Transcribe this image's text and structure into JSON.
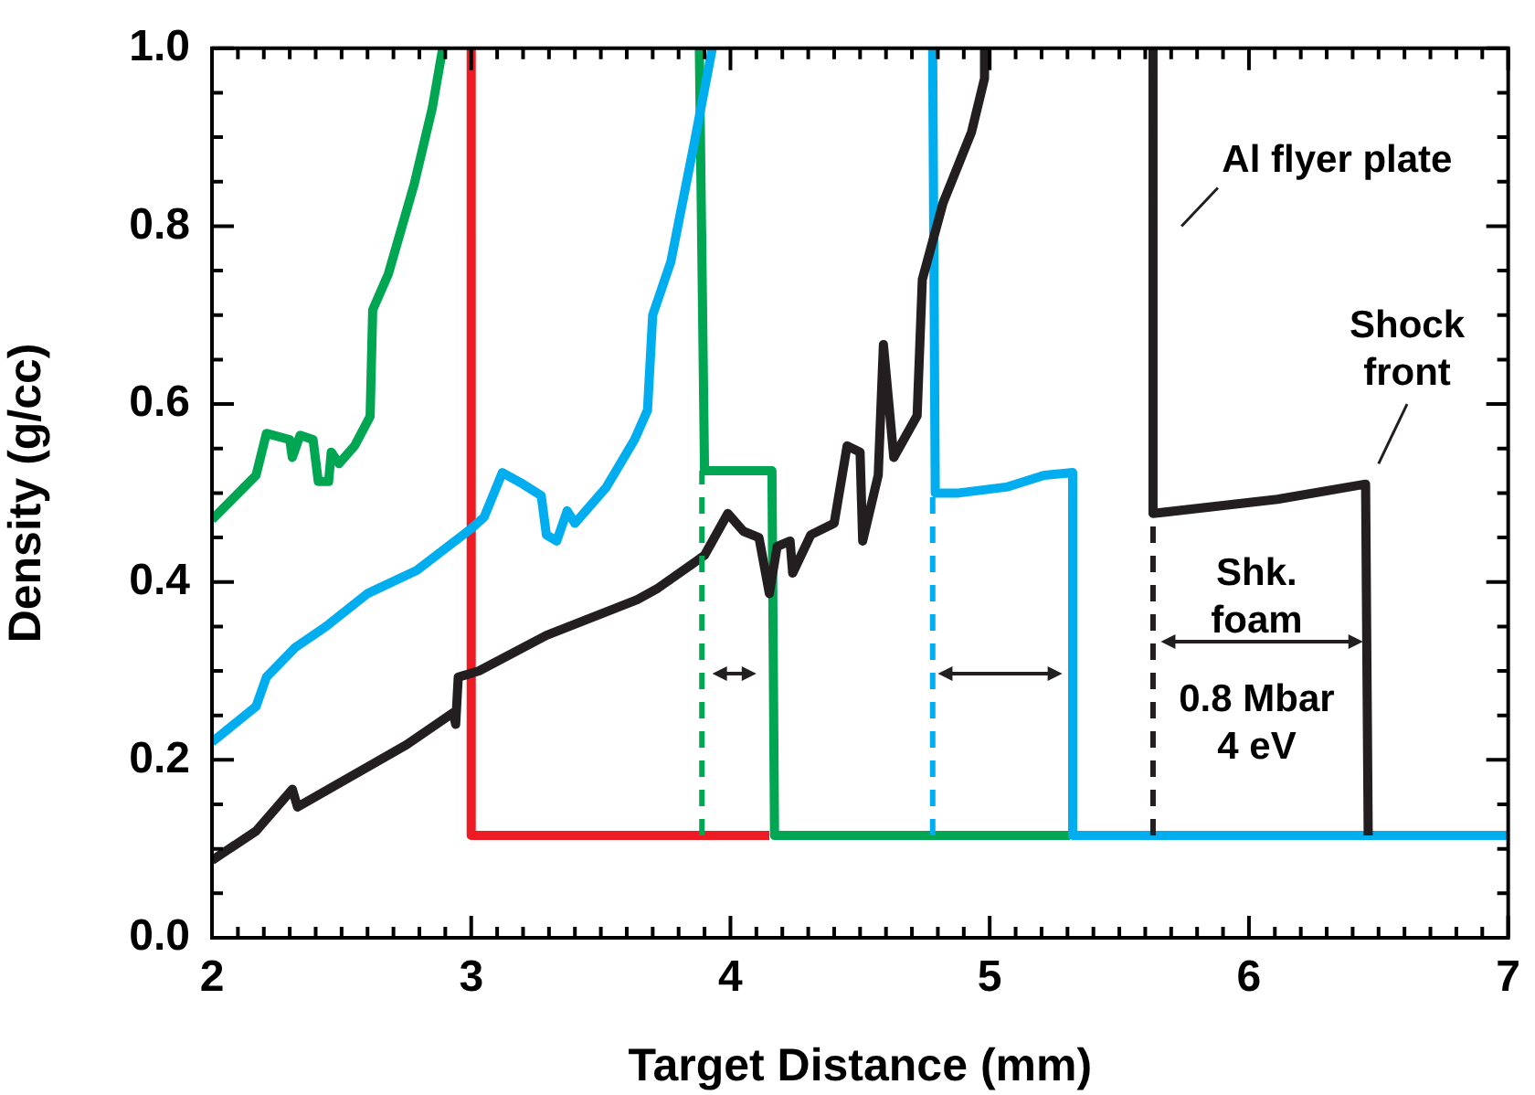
{
  "chart_data": {
    "type": "line",
    "xlabel": "Target Distance (mm)",
    "ylabel": "Density (g/cc)",
    "xlim": [
      2,
      7
    ],
    "xticks": [
      2,
      {
        "value": 2.1,
        "label": null
      },
      {
        "value": 2.2,
        "label": null
      },
      {
        "value": 2.3,
        "label": null
      },
      {
        "value": 2.4,
        "label": null
      },
      {
        "value": 2.5,
        "label": null
      },
      {
        "value": 2.6,
        "label": null
      },
      {
        "value": 2.7,
        "label": null
      },
      {
        "value": 2.8,
        "label": null
      },
      {
        "value": 2.9,
        "label": null
      },
      3,
      {
        "value": 3.1,
        "label": null
      },
      {
        "value": 3.2,
        "label": null
      },
      {
        "value": 3.3,
        "label": null
      },
      {
        "value": 3.4,
        "label": null
      },
      {
        "value": 3.5,
        "label": null
      },
      {
        "value": 3.6,
        "label": null
      },
      {
        "value": 3.7,
        "label": null
      },
      {
        "value": 3.8,
        "label": null
      },
      {
        "value": 3.9,
        "label": null
      },
      4,
      {
        "value": 4.1,
        "label": null
      },
      {
        "value": 4.2,
        "label": null
      },
      {
        "value": 4.3,
        "label": null
      },
      {
        "value": 4.4,
        "label": null
      },
      {
        "value": 4.5,
        "label": null
      },
      {
        "value": 4.6,
        "label": null
      },
      {
        "value": 4.7,
        "label": null
      },
      {
        "value": 4.8,
        "label": null
      },
      {
        "value": 4.9,
        "label": null
      },
      5,
      {
        "value": 5.1,
        "label": null
      },
      {
        "value": 5.2,
        "label": null
      },
      {
        "value": 5.3,
        "label": null
      },
      {
        "value": 5.4,
        "label": null
      },
      {
        "value": 5.5,
        "label": null
      },
      {
        "value": 5.6,
        "label": null
      },
      {
        "value": 5.7,
        "label": null
      },
      {
        "value": 5.8,
        "label": null
      },
      {
        "value": 5.9,
        "label": null
      },
      6,
      {
        "value": 6.1,
        "label": null
      },
      {
        "value": 6.2,
        "label": null
      },
      {
        "value": 6.3,
        "label": null
      },
      {
        "value": 6.4,
        "label": null
      },
      {
        "value": 6.5,
        "label": null
      },
      {
        "value": 6.6,
        "label": null
      },
      {
        "value": 6.7,
        "label": null
      },
      {
        "value": 6.8,
        "label": null
      },
      {
        "value": 6.9,
        "label": null
      },
      7
    ],
    "ylim": [
      0,
      1
    ],
    "yticks": [
      {
        "value": 0,
        "label": "0.0"
      },
      {
        "value": 0.05,
        "label": null
      },
      {
        "value": 0.1,
        "label": null
      },
      {
        "value": 0.15,
        "label": null
      },
      {
        "value": 0.2,
        "label": "0.2"
      },
      {
        "value": 0.25,
        "label": null
      },
      {
        "value": 0.3,
        "label": null
      },
      {
        "value": 0.35,
        "label": null
      },
      {
        "value": 0.4,
        "label": "0.4"
      },
      {
        "value": 0.45,
        "label": null
      },
      {
        "value": 0.5,
        "label": null
      },
      {
        "value": 0.55,
        "label": null
      },
      {
        "value": 0.6,
        "label": "0.6"
      },
      {
        "value": 0.65,
        "label": null
      },
      {
        "value": 0.7,
        "label": null
      },
      {
        "value": 0.75,
        "label": null
      },
      {
        "value": 0.8,
        "label": "0.8"
      },
      {
        "value": 0.85,
        "label": null
      },
      {
        "value": 0.9,
        "label": null
      },
      {
        "value": 0.95,
        "label": null
      },
      {
        "value": 1,
        "label": "1.0"
      }
    ],
    "grid": false,
    "legend": false,
    "marker": "none",
    "series": [
      {
        "type": "line",
        "color": "#ed1c24",
        "x": [
          3,
          3,
          4.15
        ],
        "values": [
          1,
          0.115,
          0.115
        ]
      },
      {
        "type": "line",
        "color": "#00a651",
        "x": [
          2,
          2.17,
          2.21,
          2.3,
          2.31,
          2.34,
          2.39,
          2.41,
          2.45,
          2.46,
          2.49,
          2.55,
          2.61,
          2.62,
          2.68,
          2.78,
          2.85,
          2.89,
          2.95,
          3.85,
          3.88,
          3.9,
          4.16,
          4.17,
          5.31
        ],
        "values": [
          0.47,
          0.52,
          0.567,
          0.56,
          0.54,
          0.565,
          0.56,
          0.513,
          0.513,
          0.546,
          0.533,
          0.553,
          0.586,
          0.706,
          0.746,
          0.847,
          0.933,
          1,
          null,
          null,
          1,
          0.525,
          0.525,
          0.115,
          0.115
        ]
      },
      {
        "type": "line",
        "color": "#00aeef",
        "x": [
          2,
          2.17,
          2.21,
          2.32,
          2.44,
          2.6,
          2.79,
          3,
          3.05,
          3.12,
          3.2,
          3.27,
          3.29,
          3.33,
          3.37,
          3.4,
          3.52,
          3.63,
          3.68,
          3.7,
          3.77,
          3.86,
          3.93,
          4,
          4.7,
          4.78,
          4.79,
          4.88,
          5.07,
          5.21,
          5.32,
          5.32,
          7
        ],
        "values": [
          0.22,
          0.26,
          0.293,
          0.326,
          0.35,
          0.387,
          0.413,
          0.46,
          0.473,
          0.523,
          0.51,
          0.497,
          0.453,
          0.446,
          0.48,
          0.466,
          0.506,
          0.56,
          0.593,
          0.7,
          0.76,
          0.893,
          1,
          null,
          null,
          1,
          0.5,
          0.5,
          0.507,
          0.52,
          0.523,
          0.115,
          0.115
        ]
      },
      {
        "type": "line",
        "color": "#231f20",
        "x": [
          2,
          2.17,
          2.31,
          2.33,
          2.75,
          2.93,
          2.94,
          2.95,
          3.03,
          3.29,
          3.64,
          3.72,
          3.9,
          3.99,
          4.05,
          4.11,
          4.15,
          4.18,
          4.23,
          4.24,
          4.31,
          4.4,
          4.45,
          4.5,
          4.51,
          4.57,
          4.59,
          4.63,
          4.72,
          4.74,
          4.82,
          4.93,
          4.98,
          4.98,
          5.2,
          5.5,
          5.63,
          5.63,
          6.11,
          6.45,
          6.46
        ],
        "values": [
          0.087,
          0.12,
          0.167,
          0.147,
          0.217,
          0.253,
          0.24,
          0.293,
          0.3,
          0.34,
          0.38,
          0.393,
          0.43,
          0.477,
          0.457,
          0.45,
          0.387,
          0.44,
          0.446,
          0.41,
          0.453,
          0.466,
          0.553,
          0.546,
          0.446,
          0.52,
          0.667,
          0.54,
          0.587,
          0.74,
          0.826,
          0.906,
          0.966,
          1,
          null,
          null,
          1,
          0.477,
          0.493,
          0.51,
          0.115
        ]
      },
      {
        "type": "line",
        "color": "#00a651",
        "line_style": "dashed",
        "x": [
          3.89,
          3.89
        ],
        "values": [
          0.115,
          0.525
        ]
      },
      {
        "type": "line",
        "color": "#00aeef",
        "line_style": "dashed",
        "x": [
          4.78,
          4.78
        ],
        "values": [
          0.115,
          0.5
        ]
      },
      {
        "type": "line",
        "color": "#231f20",
        "line_style": "dashed",
        "x": [
          5.63,
          5.63
        ],
        "values": [
          0.115,
          0.477
        ]
      }
    ],
    "annotations": [
      "Al flyer plate",
      "Shock\nfront",
      "Shk.\nfoam",
      "0.8 Mbar\n4 eV"
    ]
  }
}
